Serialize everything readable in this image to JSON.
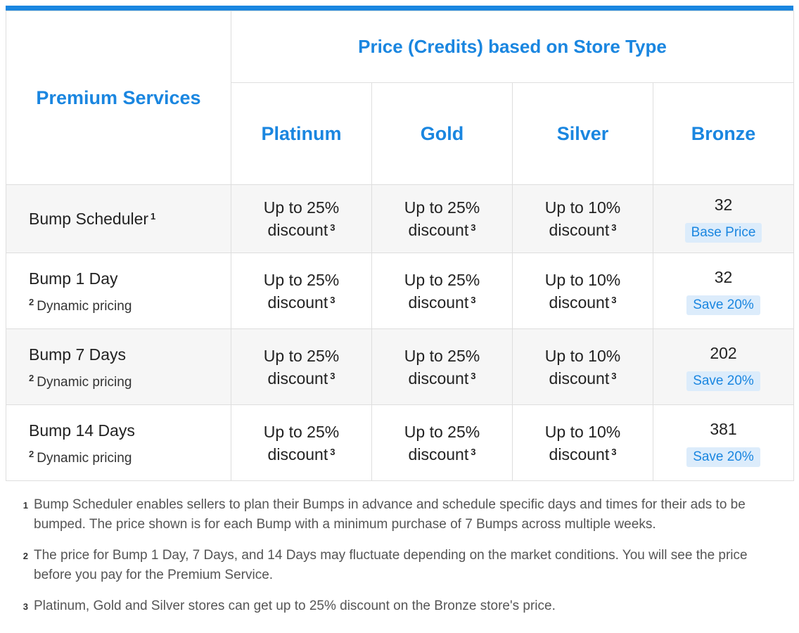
{
  "header": {
    "services_label": "Premium Services",
    "group_label": "Price (Credits) based on Store Type",
    "tiers": [
      "Platinum",
      "Gold",
      "Silver",
      "Bronze"
    ]
  },
  "rows": [
    {
      "name": "Bump Scheduler",
      "name_sup": "1",
      "sub_sup": "",
      "sub": "",
      "platinum": "Up to 25% discount",
      "platinum_sup": "3",
      "gold": "Up to 25% discount",
      "gold_sup": "3",
      "silver": "Up to 10% discount",
      "silver_sup": "3",
      "bronze_price": "32",
      "bronze_badge": "Base Price"
    },
    {
      "name": "Bump 1 Day",
      "name_sup": "",
      "sub_sup": "2",
      "sub": "Dynamic pricing",
      "platinum": "Up to 25% discount",
      "platinum_sup": "3",
      "gold": "Up to 25% discount",
      "gold_sup": "3",
      "silver": "Up to 10% discount",
      "silver_sup": "3",
      "bronze_price": "32",
      "bronze_badge": "Save 20%"
    },
    {
      "name": "Bump 7 Days",
      "name_sup": "",
      "sub_sup": "2",
      "sub": "Dynamic pricing",
      "platinum": "Up to 25% discount",
      "platinum_sup": "3",
      "gold": "Up to 25% discount",
      "gold_sup": "3",
      "silver": "Up to 10% discount",
      "silver_sup": "3",
      "bronze_price": "202",
      "bronze_badge": "Save 20%"
    },
    {
      "name": "Bump 14 Days",
      "name_sup": "",
      "sub_sup": "2",
      "sub": "Dynamic pricing",
      "platinum": "Up to 25% discount",
      "platinum_sup": "3",
      "gold": "Up to 25% discount",
      "gold_sup": "3",
      "silver": "Up to 10% discount",
      "silver_sup": "3",
      "bronze_price": "381",
      "bronze_badge": "Save 20%"
    }
  ],
  "notes": [
    {
      "num": "1",
      "text": "Bump Scheduler enables sellers to plan their Bumps in advance and schedule specific days and times for their ads to be bumped. The price shown is for each Bump with a minimum purchase of 7 Bumps across multiple weeks."
    },
    {
      "num": "2",
      "text": "The price for Bump 1 Day, 7 Days, and 14 Days may fluctuate depending on the market conditions. You will see the price before you pay for the Premium Service."
    },
    {
      "num": "3",
      "text": "Platinum, Gold and Silver stores can get up to 25% discount on the Bronze store's price."
    }
  ],
  "colors": {
    "accent": "#1a86e0",
    "badge_bg": "#dcecfb",
    "row_alt": "#f6f6f6",
    "border": "#dedede"
  }
}
